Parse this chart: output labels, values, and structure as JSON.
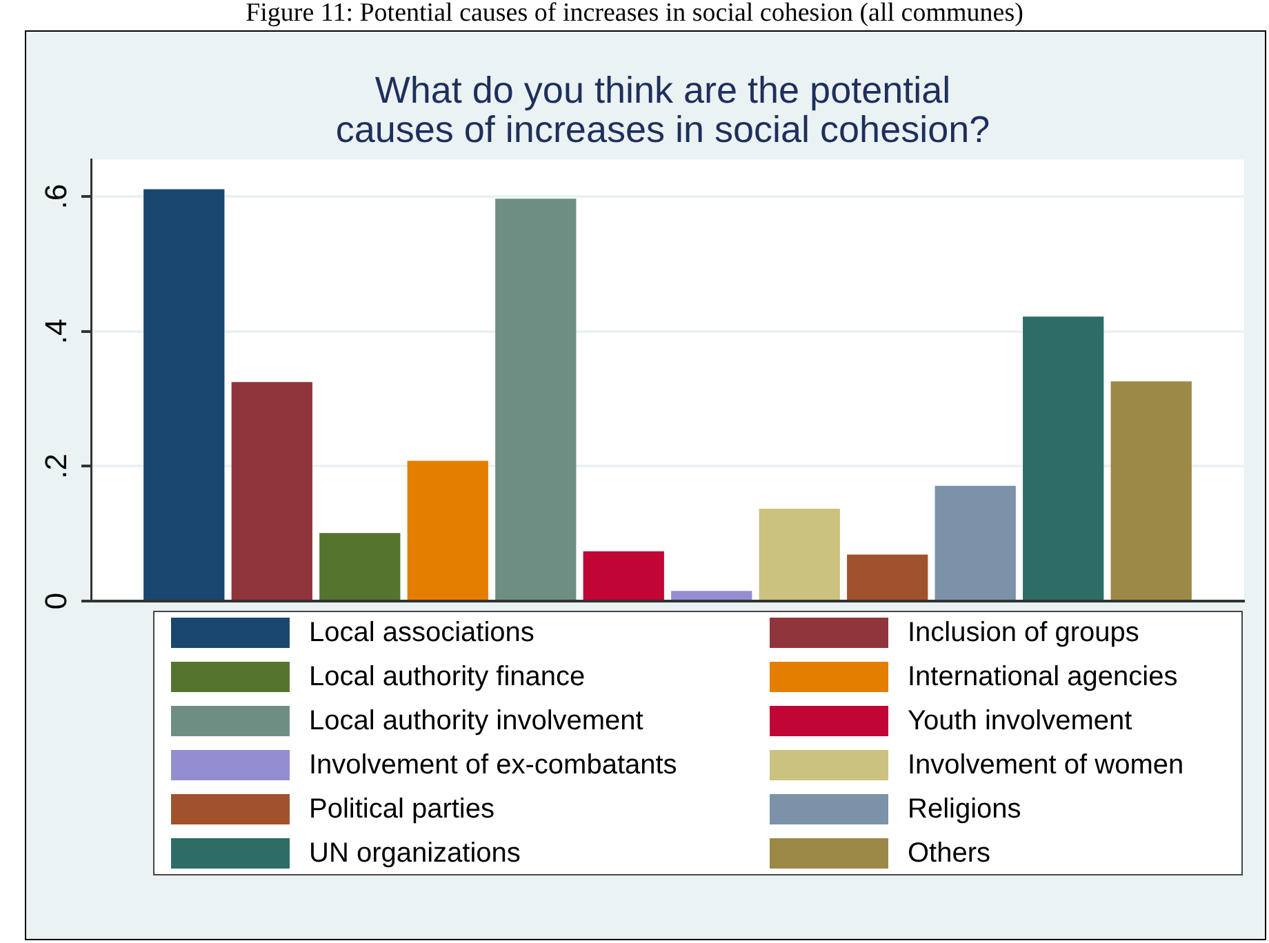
{
  "chart_data": {
    "type": "bar",
    "title": "What do you think are the potential\ncauses of increases in social cohesion?",
    "annotations": [
      "Figure 11: Potential causes of increases in social cohesion (all communes)"
    ],
    "categories": [
      null
    ],
    "series": [
      {
        "name": "Local associations",
        "color": "#1a476f",
        "values": [
          0.611
        ]
      },
      {
        "name": "Inclusion of groups",
        "color": "#90353b",
        "values": [
          0.325
        ]
      },
      {
        "name": "Local authority finance",
        "color": "#55752f",
        "values": [
          0.101
        ]
      },
      {
        "name": "International agencies",
        "color": "#e37e00",
        "values": [
          0.208
        ]
      },
      {
        "name": "Local authority involvement",
        "color": "#6e8e84",
        "values": [
          0.597
        ]
      },
      {
        "name": "Youth involvement",
        "color": "#c10534",
        "values": [
          0.074
        ]
      },
      {
        "name": "Involvement of ex-combatants",
        "color": "#938dd2",
        "values": [
          0.015
        ]
      },
      {
        "name": "Involvement of women",
        "color": "#cac27e",
        "values": [
          0.137
        ]
      },
      {
        "name": "Political parties",
        "color": "#a0522d",
        "values": [
          0.069
        ]
      },
      {
        "name": "Religions",
        "color": "#7b92a8",
        "values": [
          0.171
        ]
      },
      {
        "name": "UN organizations",
        "color": "#2d6d66",
        "values": [
          0.422
        ]
      },
      {
        "name": "Others",
        "color": "#9c8847",
        "values": [
          0.326
        ]
      }
    ],
    "ylim": [
      0,
      0.655
    ],
    "yticks": [
      0,
      {
        "value": 0.2,
        "label": ".2"
      },
      {
        "value": 0.4,
        "label": ".4"
      },
      {
        "value": 0.6,
        "label": ".6"
      }
    ],
    "grid": "y",
    "legend": "bottom"
  }
}
